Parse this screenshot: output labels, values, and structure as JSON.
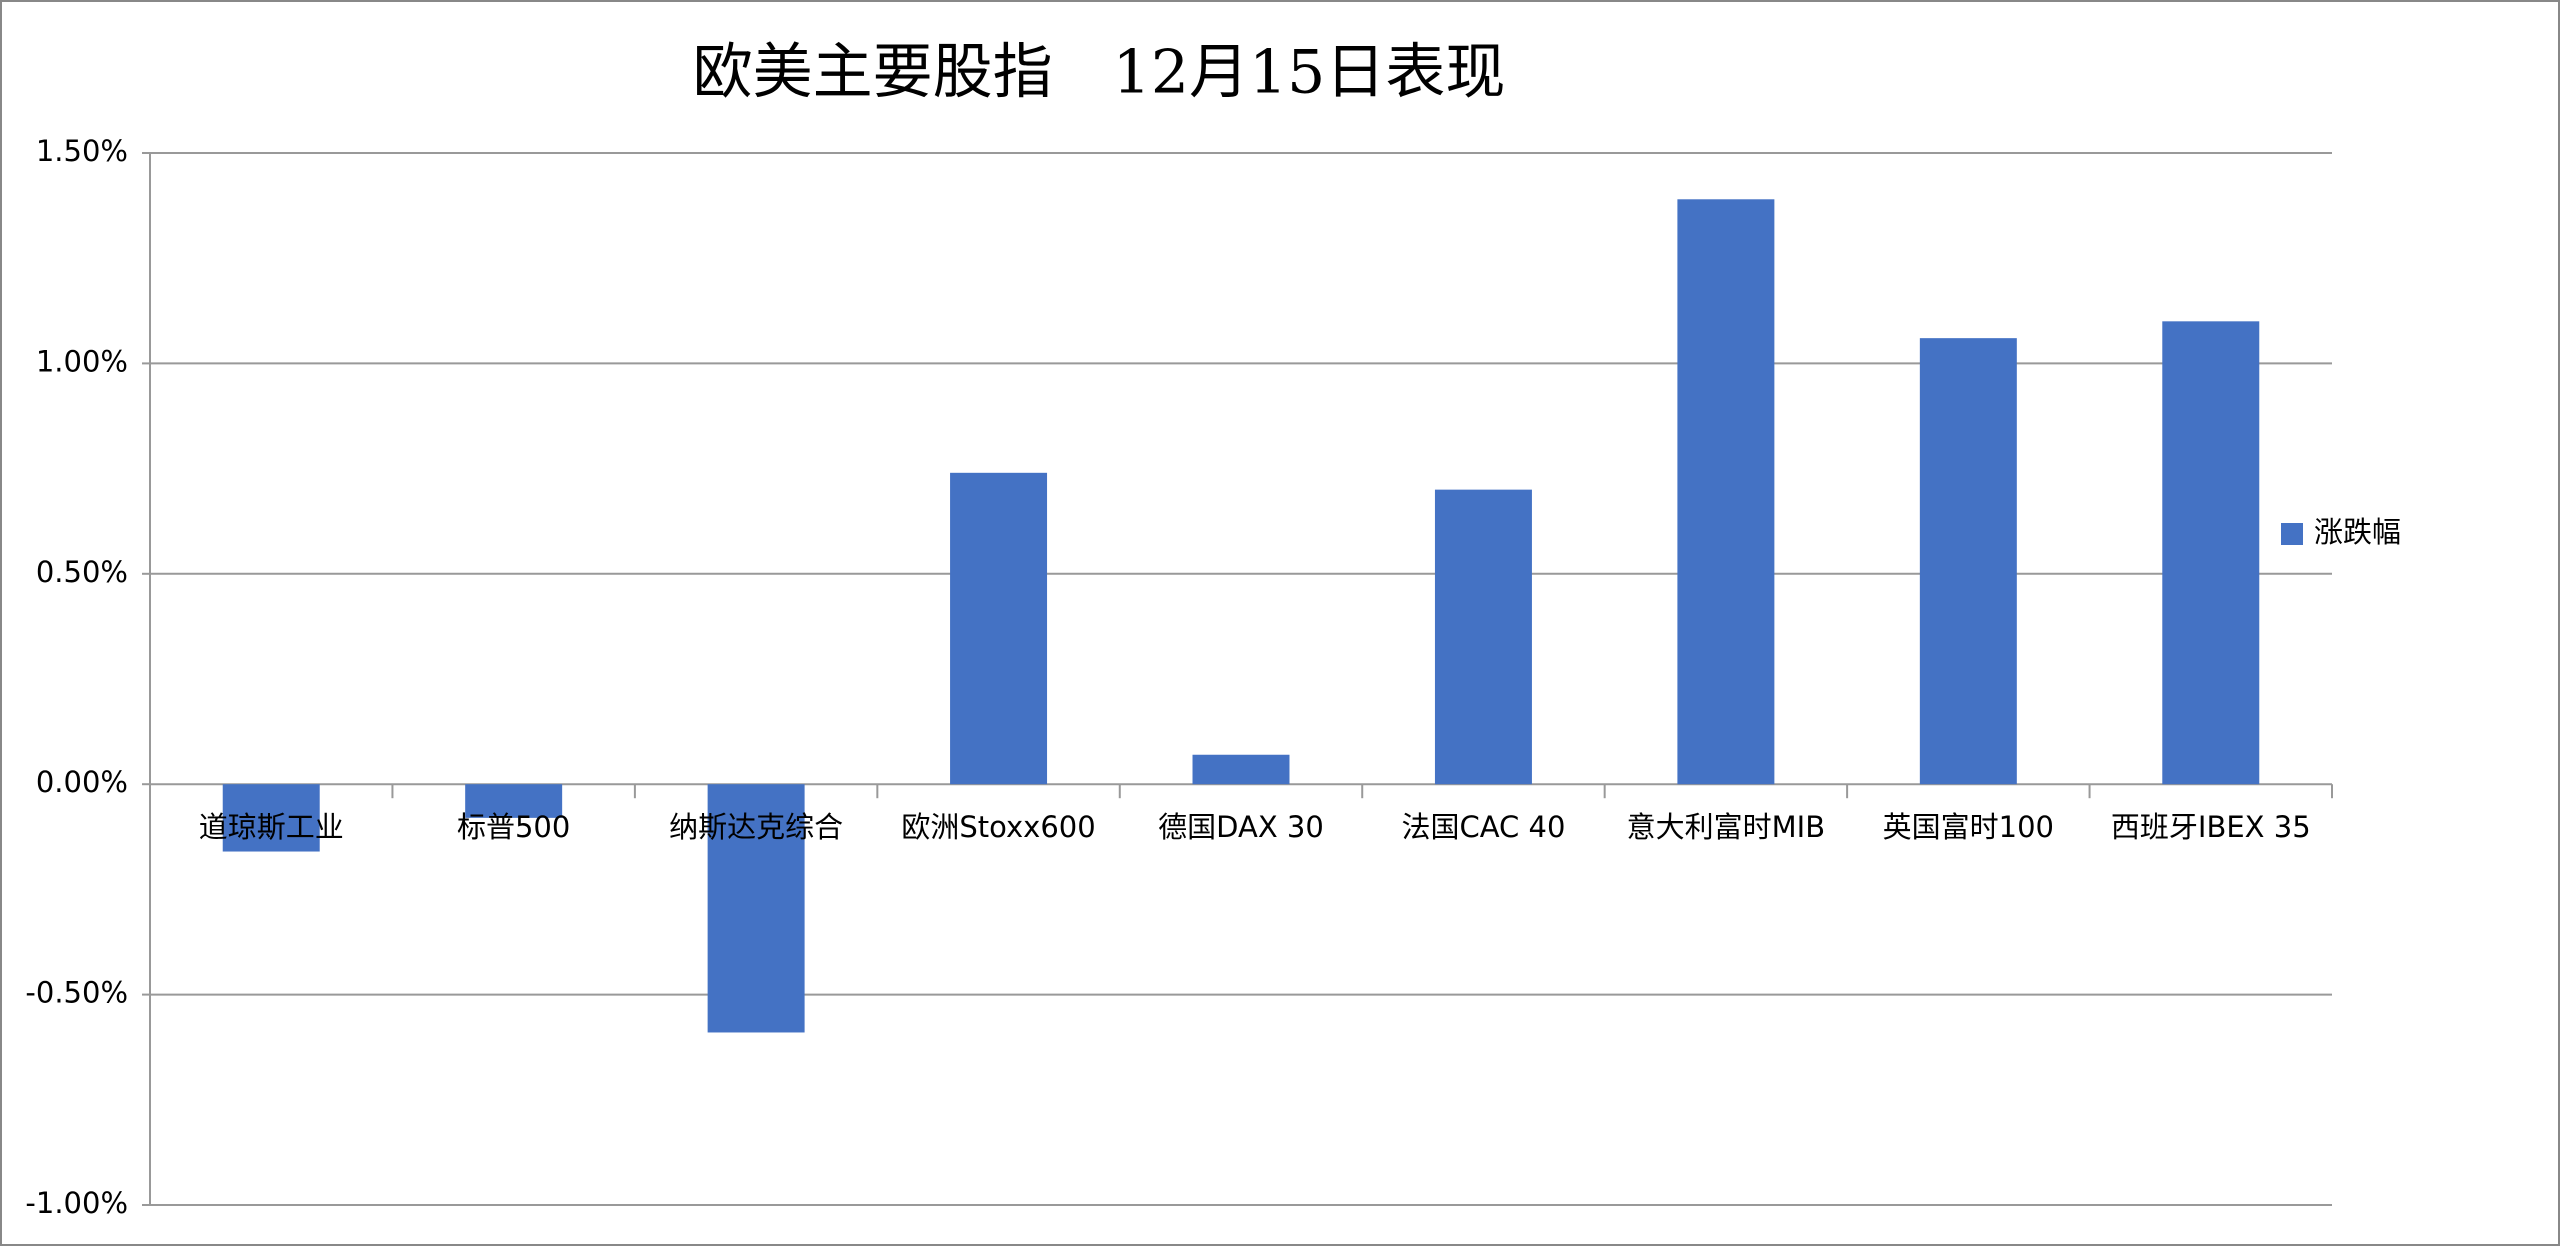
{
  "chart_data": {
    "type": "bar",
    "title": "欧美主要股指　12月15日表现",
    "categories": [
      "道琼斯工业",
      "标普500",
      "纳斯达克综合",
      "欧洲Stoxx600",
      "德国DAX 30",
      "法国CAC 40",
      "意大利富时MIB",
      "英国富时100",
      "西班牙IBEX 35"
    ],
    "series": [
      {
        "name": "涨跌幅",
        "color": "#4472c4",
        "values": [
          -0.16,
          -0.08,
          -0.59,
          0.74,
          0.07,
          0.7,
          1.39,
          1.06,
          1.1
        ]
      }
    ],
    "ylim": [
      -1.0,
      1.5
    ],
    "yticks": [
      {
        "value": -1.0,
        "label": "-1.00%"
      },
      {
        "value": -0.5,
        "label": "-0.50%"
      },
      {
        "value": 0,
        "label": "0.00%"
      },
      {
        "value": 0.5,
        "label": "0.50%"
      },
      {
        "value": 1.0,
        "label": "1.00%"
      },
      {
        "value": 1.5,
        "label": "1.50%"
      }
    ],
    "grid": true,
    "legend": "right"
  }
}
